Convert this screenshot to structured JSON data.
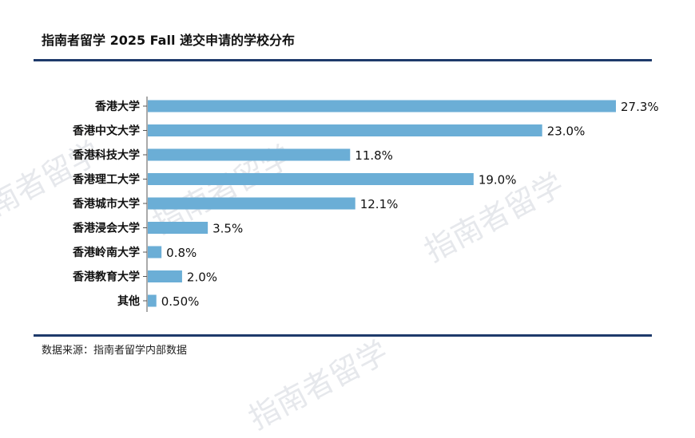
{
  "header": {
    "title": "指南者留学 2025 Fall 递交申请的学校分布"
  },
  "footer": {
    "source": "数据来源：指南者留学内部数据"
  },
  "watermark": {
    "text": "指南者留学"
  },
  "chart_data": {
    "type": "bar",
    "orientation": "horizontal",
    "categories": [
      "香港大学",
      "香港中文大学",
      "香港科技大学",
      "香港理工大学",
      "香港城市大学",
      "香港浸会大学",
      "香港岭南大学",
      "香港教育大学",
      "其他"
    ],
    "values": [
      27.3,
      23.0,
      11.8,
      19.0,
      12.1,
      3.5,
      0.8,
      2.0,
      0.5
    ],
    "value_labels": [
      "27.3%",
      "23.0%",
      "11.8%",
      "19.0%",
      "12.1%",
      "3.5%",
      "0.8%",
      "2.0%",
      "0.50%"
    ],
    "title": "",
    "xlabel": "",
    "ylabel": "",
    "xlim": [
      0,
      27.3
    ],
    "grid": false,
    "legend": "none",
    "bar_color": "#6baed6",
    "axis_color": "#555555"
  }
}
